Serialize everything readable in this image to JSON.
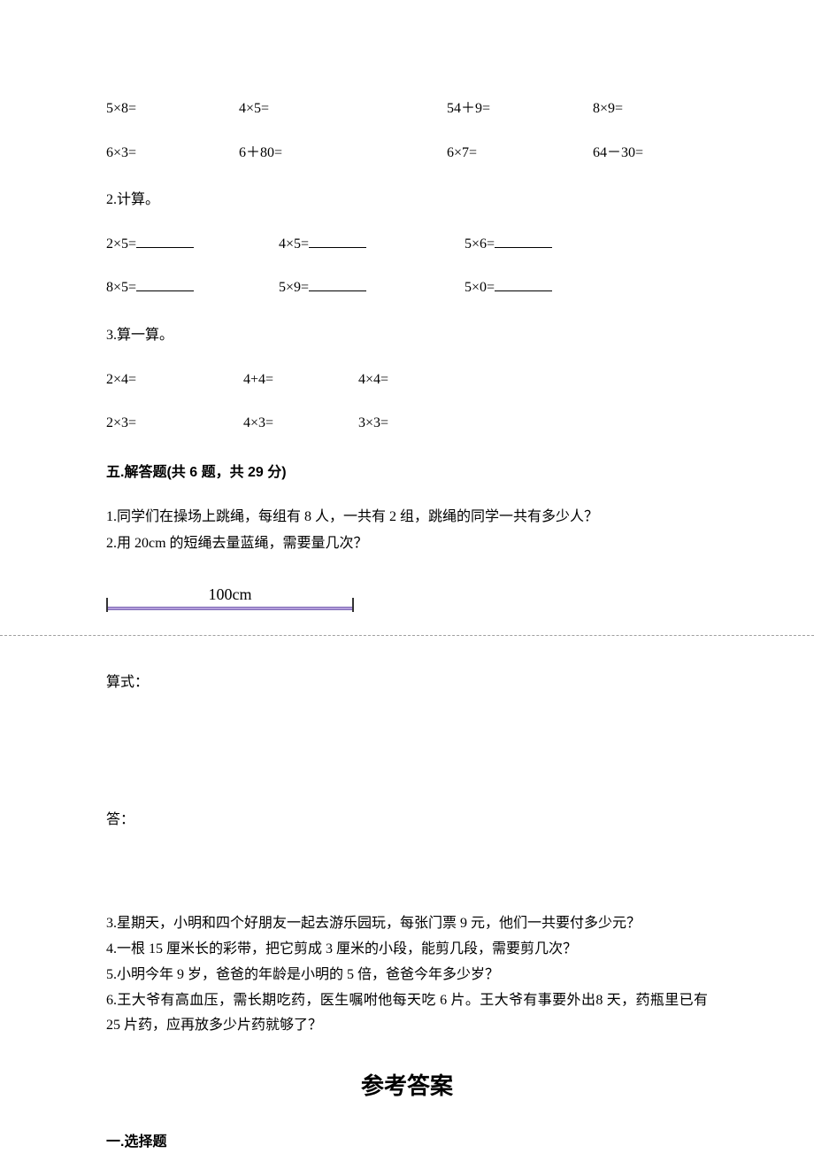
{
  "calc_row1": {
    "c1": "5×8=",
    "c2": "4×5=",
    "c3": "54＋9=",
    "c4": "8×9="
  },
  "calc_row2": {
    "c1": "6×3=",
    "c2": "6＋80=",
    "c3": "6×7=",
    "c4": "64－30="
  },
  "section2_label": "2.计算。",
  "fill_row1": {
    "c1": "2×5=",
    "c2": "4×5=",
    "c3": "5×6="
  },
  "fill_row2": {
    "c1": "8×5=",
    "c2": "5×9=",
    "c3": "5×0="
  },
  "section3_label": "3.算一算。",
  "tri_row1": {
    "c1": "2×4=",
    "c2": "4+4=",
    "c3": "4×4="
  },
  "tri_row2": {
    "c1": "2×3=",
    "c2": "4×3=",
    "c3": "3×3="
  },
  "heading5": "五.解答题(共 6 题，共 29 分)",
  "q1": "1.同学们在操场上跳绳，每组有 8 人，一共有 2 组，跳绳的同学一共有多少人？",
  "q2": "2.用 20cm 的短绳去量蓝绳，需要量几次？",
  "ruler_label": "100cm",
  "formula_label": "算式：",
  "answer_label": "答：",
  "q3": "3.星期天，小明和四个好朋友一起去游乐园玩，每张门票 9 元，他们一共要付多少元？",
  "q4": "4.一根 15 厘米长的彩带，把它剪成 3 厘米的小段，能剪几段，需要剪几次？",
  "q5": "5.小明今年 9 岁，爸爸的年龄是小明的 5 倍，爸爸今年多少岁？",
  "q6": "6.王大爷有高血压，需长期吃药，医生嘱咐他每天吃 6 片。王大爷有事要外出8 天，药瓶里已有 25 片药，应再放多少片药就够了？",
  "answers_title": "参考答案",
  "section_choice": "一.选择题",
  "colors": {
    "background": "#ffffff",
    "text": "#000000",
    "ruler_fill": "#b39ddb",
    "ruler_border": "#7e6bb5",
    "dashed": "#a0a0a0"
  }
}
